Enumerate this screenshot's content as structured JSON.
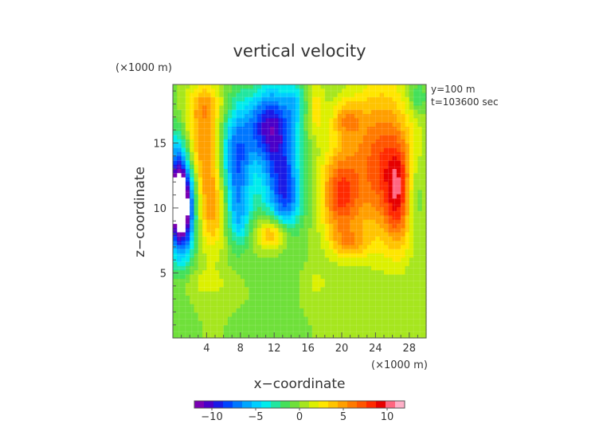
{
  "chart_data": {
    "type": "heatmap",
    "title": "vertical velocity",
    "xlabel": "x−coordinate",
    "ylabel": "z−coordinate",
    "x_unit": "(×1000 m)",
    "y_unit": "(×1000 m)",
    "annotations": [
      "y=100 m",
      "t=103600 sec"
    ],
    "xlim": [
      0,
      30
    ],
    "ylim": [
      0,
      19.5
    ],
    "x_ticks": [
      4,
      8,
      12,
      16,
      20,
      24,
      28
    ],
    "x_tick_labels": [
      "4",
      "8",
      "12",
      "16",
      "20",
      "24",
      "28"
    ],
    "y_ticks": [
      5,
      10,
      15
    ],
    "y_tick_labels": [
      "5",
      "10",
      "15"
    ],
    "colorbar": {
      "range": [
        -12,
        12
      ],
      "ticks": [
        -10,
        -5,
        0,
        5,
        10
      ],
      "tick_labels": [
        "−10",
        "−5",
        "0",
        "5",
        "10"
      ],
      "colors": [
        "#7a00b4",
        "#4b00c8",
        "#1a1ae6",
        "#0044ff",
        "#0077ff",
        "#00a6ff",
        "#00cfff",
        "#00ecec",
        "#22e6a0",
        "#44e05a",
        "#6fe03a",
        "#a6e61e",
        "#dcf000",
        "#ffe600",
        "#ffc400",
        "#ff9f00",
        "#ff7a00",
        "#ff5500",
        "#ff2a00",
        "#e60000",
        "#ff6680",
        "#ffb0c8"
      ]
    },
    "background_value": 0,
    "features": [
      {
        "x": 1.2,
        "z": 10.2,
        "sx": 1.0,
        "sz": 2.6,
        "value": -14
      },
      {
        "x": 0.3,
        "z": 11.5,
        "sx": 0.8,
        "sz": 3.0,
        "value": -6
      },
      {
        "x": 3.6,
        "z": 14.8,
        "sx": 1.5,
        "sz": 2.6,
        "value": 5
      },
      {
        "x": 4.8,
        "z": 10.0,
        "sx": 1.3,
        "sz": 2.4,
        "value": 5
      },
      {
        "x": 4.0,
        "z": 18.0,
        "sx": 1.6,
        "sz": 1.2,
        "value": 3
      },
      {
        "x": 7.5,
        "z": 13.5,
        "sx": 1.4,
        "sz": 3.2,
        "value": -8
      },
      {
        "x": 7.8,
        "z": 9.0,
        "sx": 1.0,
        "sz": 1.5,
        "value": -3
      },
      {
        "x": 10.8,
        "z": 16.5,
        "sx": 1.6,
        "sz": 1.8,
        "value": -6
      },
      {
        "x": 12.6,
        "z": 14.0,
        "sx": 1.7,
        "sz": 3.6,
        "value": -8
      },
      {
        "x": 13.6,
        "z": 10.5,
        "sx": 1.2,
        "sz": 1.8,
        "value": -4
      },
      {
        "x": 11.8,
        "z": 8.0,
        "sx": 1.4,
        "sz": 0.9,
        "value": 6
      },
      {
        "x": 14.5,
        "z": 18.0,
        "sx": 0.8,
        "sz": 1.2,
        "value": -3
      },
      {
        "x": 17.0,
        "z": 17.5,
        "sx": 0.7,
        "sz": 1.5,
        "value": 3
      },
      {
        "x": 19.8,
        "z": 11.0,
        "sx": 1.6,
        "sz": 2.5,
        "value": 7
      },
      {
        "x": 20.5,
        "z": 16.8,
        "sx": 1.2,
        "sz": 1.0,
        "value": 4
      },
      {
        "x": 24.5,
        "z": 13.5,
        "sx": 2.6,
        "sz": 4.2,
        "value": 7
      },
      {
        "x": 26.8,
        "z": 11.0,
        "sx": 1.2,
        "sz": 2.8,
        "value": 6
      },
      {
        "x": 28.5,
        "z": 11.0,
        "sx": 0.8,
        "sz": 2.0,
        "value": -3
      },
      {
        "x": 29.0,
        "z": 18.5,
        "sx": 0.7,
        "sz": 0.8,
        "value": -3
      },
      {
        "x": 21.0,
        "z": 7.3,
        "sx": 1.5,
        "sz": 0.8,
        "value": 3
      },
      {
        "x": 17.0,
        "z": 4.2,
        "sx": 0.9,
        "sz": 0.8,
        "value": 1.5
      },
      {
        "x": 4.0,
        "z": 4.2,
        "sx": 2.0,
        "sz": 0.8,
        "value": 1.5
      }
    ]
  }
}
